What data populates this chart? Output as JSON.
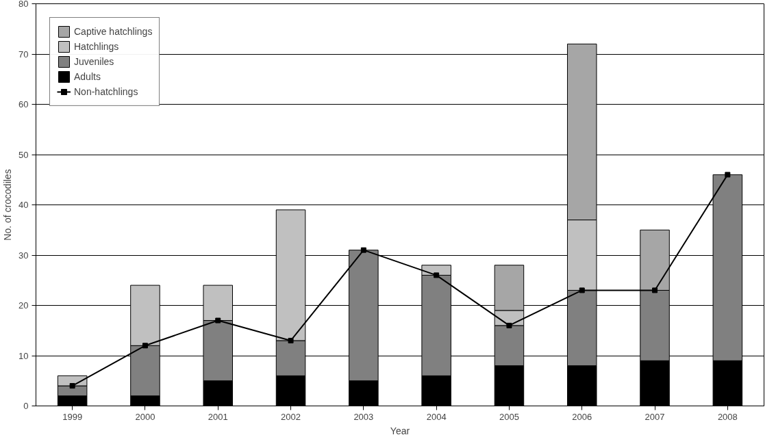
{
  "chart_data": {
    "type": "bar",
    "stacked": true,
    "xlabel": "Year",
    "ylabel": "No. of crocodiles",
    "categories": [
      "1999",
      "2000",
      "2001",
      "2002",
      "2003",
      "2004",
      "2005",
      "2006",
      "2007",
      "2008"
    ],
    "series": [
      {
        "name": "Adults",
        "color": "#000000",
        "values": [
          2,
          2,
          5,
          6,
          5,
          6,
          8,
          8,
          9,
          9
        ]
      },
      {
        "name": "Juveniles",
        "color": "#808080",
        "values": [
          2,
          10,
          12,
          7,
          26,
          20,
          8,
          15,
          14,
          37
        ]
      },
      {
        "name": "Hatchlings",
        "color": "#c0c0c0",
        "values": [
          2,
          12,
          7,
          26,
          0,
          2,
          3,
          14,
          0,
          0
        ]
      },
      {
        "name": "Captive hatchlings",
        "color": "#a6a6a6",
        "values": [
          0,
          0,
          0,
          0,
          0,
          0,
          9,
          35,
          12,
          0
        ]
      },
      {
        "name": "Non-hatchlings",
        "type": "line",
        "color": "#000000",
        "marker": "square",
        "values": [
          4,
          12,
          17,
          13,
          31,
          26,
          16,
          23,
          23,
          46
        ]
      }
    ],
    "ylim": [
      0,
      80
    ],
    "yticks": [
      0,
      10,
      20,
      30,
      40,
      50,
      60,
      70,
      80
    ],
    "grid": "y",
    "legend": "top left"
  }
}
